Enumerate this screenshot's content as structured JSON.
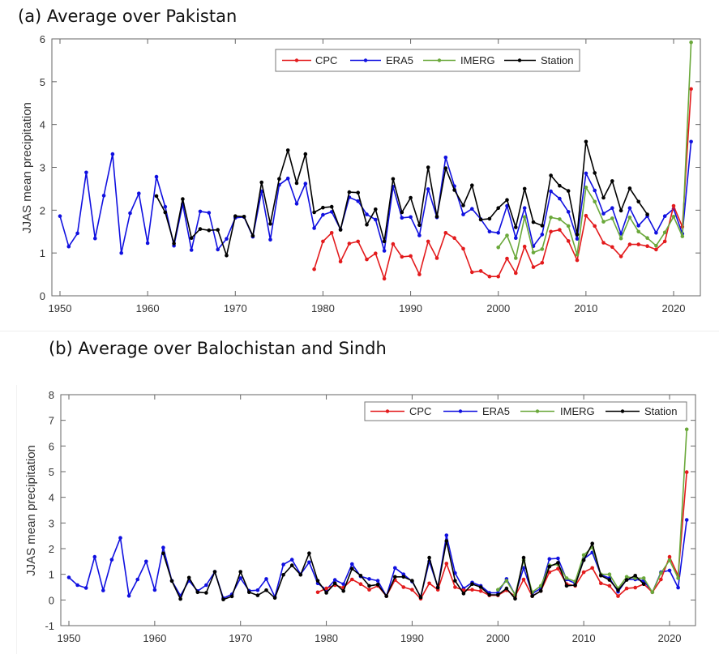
{
  "panels": [
    {
      "title": "(a) Average over Pakistan"
    },
    {
      "title": "(b) Average over Balochistan and Sindh"
    }
  ],
  "colors": {
    "CPC": "#e31a1c",
    "ERA5": "#1010e0",
    "IMERG": "#6aa83a",
    "Station": "#000000"
  },
  "chart_data": [
    {
      "type": "line",
      "title": "(a) Average over Pakistan",
      "xlabel": "",
      "ylabel": "JJAS mean precipitation",
      "xlim": [
        1949,
        2023
      ],
      "ylim": [
        0,
        6
      ],
      "xticks": [
        1950,
        1960,
        1970,
        1980,
        1990,
        2000,
        2010,
        2020
      ],
      "yticks": [
        0,
        1,
        2,
        3,
        4,
        5,
        6
      ],
      "legend": {
        "entries": [
          "CPC",
          "ERA5",
          "IMERG",
          "Station"
        ],
        "placement": "top-center",
        "orientation": "horizontal"
      },
      "grid": false,
      "series": [
        {
          "name": "CPC",
          "start": 1979,
          "values": [
            0.62,
            1.27,
            1.47,
            0.8,
            1.22,
            1.27,
            0.85,
            0.99,
            0.4,
            1.21,
            0.91,
            0.93,
            0.5,
            1.27,
            0.88,
            1.47,
            1.35,
            1.1,
            0.55,
            0.58,
            0.45,
            0.45,
            0.87,
            0.53,
            1.15,
            0.67,
            0.77,
            1.5,
            1.54,
            1.28,
            0.83,
            1.87,
            1.63,
            1.24,
            1.14,
            0.92,
            1.2,
            1.2,
            1.16,
            1.08,
            1.27,
            2.1,
            1.61,
            4.83
          ]
        },
        {
          "name": "ERA5",
          "start": 1950,
          "values": [
            1.86,
            1.15,
            1.46,
            2.88,
            1.34,
            2.34,
            3.31,
            1.0,
            1.93,
            2.39,
            1.23,
            2.78,
            2.08,
            1.17,
            2.14,
            1.07,
            1.97,
            1.94,
            1.08,
            1.33,
            1.82,
            1.84,
            1.38,
            2.44,
            1.31,
            2.59,
            2.74,
            2.15,
            2.62,
            1.58,
            1.89,
            1.96,
            1.55,
            2.3,
            2.21,
            1.9,
            1.78,
            1.05,
            2.55,
            1.82,
            1.84,
            1.41,
            2.49,
            1.83,
            3.23,
            2.56,
            1.9,
            2.03,
            1.79,
            1.5,
            1.47,
            2.1,
            1.35,
            2.05,
            1.16,
            1.43,
            2.44,
            2.27,
            1.96,
            1.33,
            2.86,
            2.46,
            1.92,
            2.05,
            1.45,
            2.05,
            1.64,
            1.86,
            1.47,
            1.86,
            2.03,
            1.45,
            3.6
          ]
        },
        {
          "name": "IMERG",
          "start": 2000,
          "values": [
            1.13,
            1.41,
            0.88,
            1.84,
            1.01,
            1.09,
            1.83,
            1.79,
            1.63,
            0.96,
            2.53,
            2.2,
            1.73,
            1.81,
            1.34,
            1.83,
            1.5,
            1.35,
            1.17,
            1.48,
            1.85,
            1.39,
            5.92
          ]
        },
        {
          "name": "Station",
          "start": 1961,
          "values": [
            2.33,
            1.95,
            1.22,
            2.26,
            1.35,
            1.56,
            1.53,
            1.54,
            0.94,
            1.86,
            1.85,
            1.4,
            2.65,
            1.68,
            2.73,
            3.4,
            2.63,
            3.31,
            1.95,
            2.06,
            2.08,
            1.54,
            2.42,
            2.41,
            1.66,
            2.02,
            1.27,
            2.73,
            1.95,
            2.29,
            1.65,
            3.0,
            1.85,
            2.98,
            2.47,
            2.11,
            2.58,
            1.78,
            1.8,
            2.05,
            2.24,
            1.6,
            2.5,
            1.72,
            1.64,
            2.81,
            2.57,
            2.45,
            1.43,
            3.6,
            2.87,
            2.29,
            2.68,
            1.99,
            2.51,
            2.2,
            1.9
          ]
        }
      ]
    },
    {
      "type": "line",
      "title": "(b) Average over Balochistan and Sindh",
      "xlabel": "",
      "ylabel": "JJAS mean precipitation",
      "xlim": [
        1949,
        2023
      ],
      "ylim": [
        -1,
        8
      ],
      "xticks": [
        1950,
        1960,
        1970,
        1980,
        1990,
        2000,
        2010,
        2020
      ],
      "yticks": [
        -1,
        0,
        1,
        2,
        3,
        4,
        5,
        6,
        7,
        8
      ],
      "legend": {
        "entries": [
          "CPC",
          "ERA5",
          "IMERG",
          "Station"
        ],
        "placement": "top-right",
        "orientation": "horizontal"
      },
      "grid": false,
      "series": [
        {
          "name": "CPC",
          "start": 1979,
          "values": [
            0.3,
            0.45,
            0.58,
            0.48,
            0.8,
            0.62,
            0.4,
            0.55,
            0.15,
            0.78,
            0.5,
            0.4,
            0.05,
            0.65,
            0.4,
            1.42,
            0.5,
            0.38,
            0.4,
            0.35,
            0.18,
            0.18,
            0.38,
            0.15,
            0.8,
            0.15,
            0.35,
            1.08,
            1.22,
            0.62,
            0.55,
            1.08,
            1.25,
            0.65,
            0.55,
            0.15,
            0.45,
            0.48,
            0.62,
            0.3,
            0.8,
            1.68,
            0.95,
            4.98
          ]
        },
        {
          "name": "ERA5",
          "start": 1950,
          "values": [
            0.88,
            0.58,
            0.47,
            1.68,
            0.37,
            1.57,
            2.42,
            0.16,
            0.8,
            1.5,
            0.39,
            2.04,
            0.75,
            0.17,
            0.75,
            0.35,
            0.58,
            1.1,
            0.07,
            0.22,
            0.85,
            0.36,
            0.38,
            0.82,
            0.12,
            1.38,
            1.57,
            1.0,
            1.47,
            0.65,
            0.4,
            0.78,
            0.62,
            1.4,
            0.92,
            0.82,
            0.75,
            0.15,
            1.25,
            1.0,
            0.72,
            0.12,
            1.5,
            0.5,
            2.52,
            1.05,
            0.45,
            0.68,
            0.55,
            0.28,
            0.28,
            0.82,
            0.2,
            1.25,
            0.25,
            0.45,
            1.6,
            1.62,
            0.8,
            0.65,
            1.6,
            1.85,
            0.98,
            0.85,
            0.32,
            0.8,
            0.8,
            0.75,
            0.3,
            1.08,
            1.15,
            0.48,
            3.12
          ]
        },
        {
          "name": "IMERG",
          "start": 2000,
          "values": [
            0.4,
            0.75,
            0.2,
            1.55,
            0.3,
            0.55,
            1.35,
            1.38,
            0.85,
            0.72,
            1.75,
            2.05,
            1.0,
            1.0,
            0.45,
            0.9,
            0.85,
            0.85,
            0.3,
            1.05,
            1.55,
            0.85,
            6.65
          ]
        },
        {
          "name": "Station",
          "start": 1961,
          "values": [
            1.82,
            0.74,
            0.04,
            0.87,
            0.3,
            0.28,
            1.1,
            0.02,
            0.14,
            1.1,
            0.3,
            0.18,
            0.38,
            0.08,
            0.98,
            1.35,
            0.98,
            1.82,
            0.75,
            0.28,
            0.65,
            0.35,
            1.22,
            0.95,
            0.55,
            0.6,
            0.15,
            0.9,
            0.9,
            0.75,
            0.1,
            1.65,
            0.48,
            2.3,
            0.75,
            0.25,
            0.62,
            0.5,
            0.2,
            0.2,
            0.45,
            0.05,
            1.65,
            0.15,
            0.35,
            1.3,
            1.45,
            0.55,
            0.58,
            1.55,
            2.2,
            0.95,
            0.78,
            0.38,
            0.78,
            0.95,
            0.62
          ]
        }
      ]
    }
  ]
}
